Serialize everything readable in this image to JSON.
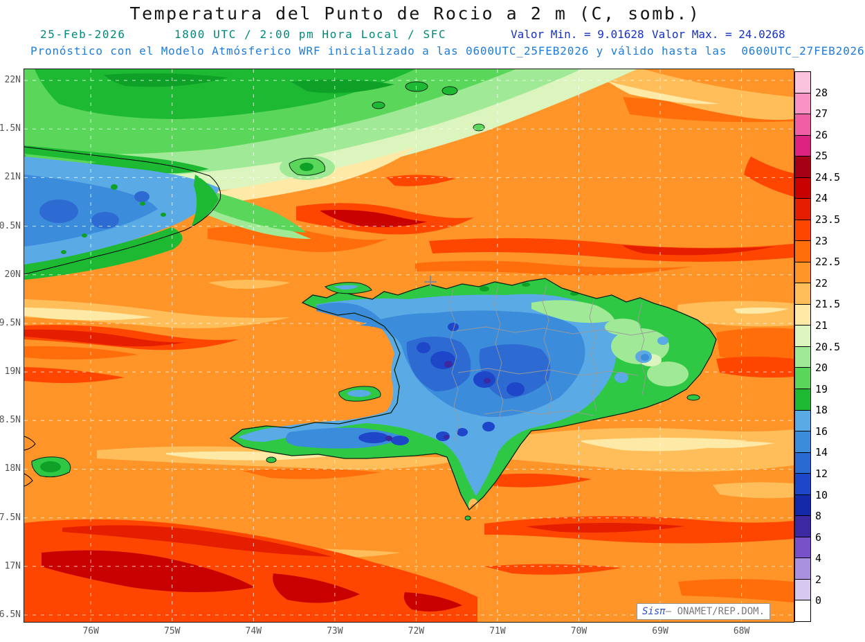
{
  "title": "Temperatura del Punto de Rocio a 2 m (C, somb.)",
  "header": {
    "date": "25-Feb-2026",
    "time": "1800 UTC / 2:00 pm Hora Local / SFC",
    "valor_min": "Valor Min. = 9.01628",
    "valor_max": "Valor Max. = 24.0268",
    "forecast": "Pronóstico con el Modelo Atmósferico WRF inicializado a las 0600UTC_25FEB2026 y válido hasta las  0600UTC_27FEB2026"
  },
  "colors": {
    "header_teal": "#00897B",
    "valor_blue": "#1430C8",
    "forecast_blue": "#1E7CDC",
    "axis_gray": "#555555",
    "ocean_orange": "#FF9428"
  },
  "axes": {
    "lat_labels": [
      "22N",
      "1.5N",
      "21N",
      "0.5N",
      "20N",
      "9.5N",
      "19N",
      "8.5N",
      "18N",
      "7.5N",
      "17N",
      "6.5N"
    ],
    "lon_labels": [
      "76W",
      "75W",
      "74W",
      "73W",
      "72W",
      "71W",
      "70W",
      "69W",
      "68W"
    ]
  },
  "legend": {
    "labels": [
      "28",
      "27",
      "26",
      "25",
      "24.5",
      "24",
      "23.5",
      "23",
      "22.5",
      "22",
      "21.5",
      "21",
      "20.5",
      "20",
      "19",
      "18",
      "16",
      "14",
      "12",
      "10",
      "8",
      "6",
      "4",
      "2",
      "0"
    ],
    "cell_colors": [
      "#FBC4DE",
      "#F893C4",
      "#F05FA5",
      "#DC2382",
      "#A50014",
      "#C80000",
      "#E61E00",
      "#FF4600",
      "#FF6E0A",
      "#FF9428",
      "#FFBE5A",
      "#FFE9A6",
      "#DCF5BE",
      "#A0E996",
      "#5AD75A",
      "#1EB932",
      "#5AAAE6",
      "#3C8CDC",
      "#2869D2",
      "#1E46C8",
      "#1428AA",
      "#3C28A0",
      "#7850C8",
      "#A991E0",
      "#D7C8F0",
      "#FFFFFF"
    ]
  },
  "watermark": {
    "brand": "Sisπ",
    "rest": "– ONAMET/REP.DOM."
  },
  "chart_data": {
    "type": "heatmap",
    "subtype": "filled_contour_weather_map",
    "title": "Temperatura del Punto de Rocio a 2 m (C, somb.)",
    "units": "C",
    "valid_date": "25-Feb-2026",
    "valid_time": "1800 UTC / 2:00 pm Hora Local / SFC",
    "valor_min": 9.01628,
    "valor_max": 24.0268,
    "model": "WRF",
    "initialized": "0600UTC_25FEB2026",
    "valid_until": "0600UTC_27FEB2026",
    "colorbar_levels_top_to_bottom": [
      28,
      27,
      26,
      25,
      24.5,
      24,
      23.5,
      23,
      22.5,
      22,
      21.5,
      21,
      20.5,
      20,
      19,
      18,
      16,
      14,
      12,
      10,
      8,
      6,
      4,
      2,
      0
    ],
    "colorbar_colors_top_to_bottom": [
      "#FBC4DE",
      "#F893C4",
      "#F05FA5",
      "#DC2382",
      "#A50014",
      "#C80000",
      "#E61E00",
      "#FF4600",
      "#FF6E0A",
      "#FF9428",
      "#FFBE5A",
      "#FFE9A6",
      "#DCF5BE",
      "#A0E996",
      "#5AD75A",
      "#1EB932",
      "#5AAAE6",
      "#3C8CDC",
      "#2869D2",
      "#1E46C8",
      "#1428AA",
      "#3C28A0",
      "#7850C8",
      "#A991E0",
      "#D7C8F0",
      "#FFFFFF"
    ],
    "x_axis_ticks": [
      "76W",
      "75W",
      "74W",
      "73W",
      "72W",
      "71W",
      "70W",
      "69W",
      "68W"
    ],
    "y_axis_ticks_displayed": [
      "22N",
      "1.5N",
      "21N",
      "0.5N",
      "20N",
      "9.5N",
      "19N",
      "8.5N",
      "18N",
      "7.5N",
      "17N",
      "6.5N"
    ],
    "grid": "dashed white graticule every 0.5 deg lat / 1 deg lon"
  }
}
